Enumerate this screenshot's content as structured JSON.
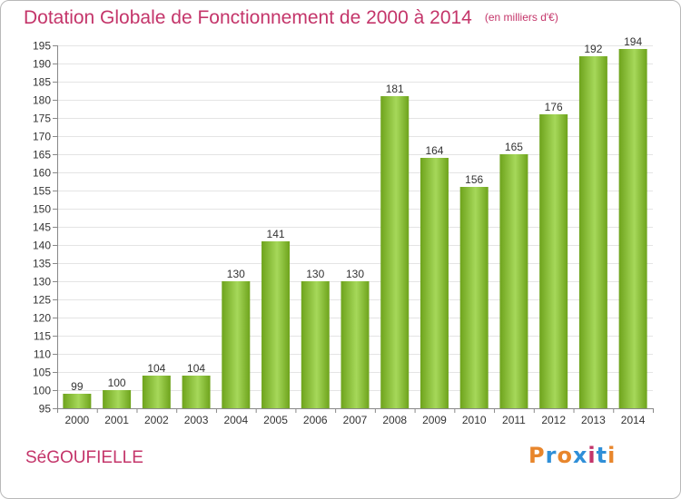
{
  "header": {
    "title": "Dotation Globale de Fonctionnement de 2000 à 2014",
    "unit": "(en milliers d'€)"
  },
  "footer": {
    "commune": "SéGOUFIELLE",
    "logo_text": "Proxiti"
  },
  "colors": {
    "title": "#c4356a",
    "bar_light": "#a6d85a",
    "bar_dark": "#6ea31c",
    "logo_letters": [
      "#e8862c",
      "#2f8fd8",
      "#e8862c",
      "#2f8fd8",
      "#c4356a",
      "#2f8fd8",
      "#e8862c"
    ]
  },
  "chart_data": {
    "type": "bar",
    "title": "Dotation Globale de Fonctionnement de 2000 à 2014",
    "subtitle": "(en milliers d'€)",
    "categories": [
      "2000",
      "2001",
      "2002",
      "2003",
      "2004",
      "2005",
      "2006",
      "2007",
      "2008",
      "2009",
      "2010",
      "2011",
      "2012",
      "2013",
      "2014"
    ],
    "values": [
      99,
      100,
      104,
      104,
      130,
      141,
      130,
      130,
      181,
      164,
      156,
      165,
      176,
      192,
      194
    ],
    "ylim": [
      95,
      195
    ],
    "yticks": [
      95,
      100,
      105,
      110,
      115,
      120,
      125,
      130,
      135,
      140,
      145,
      150,
      155,
      160,
      165,
      170,
      175,
      180,
      185,
      190,
      195
    ],
    "grid": true,
    "data_labels": true
  }
}
